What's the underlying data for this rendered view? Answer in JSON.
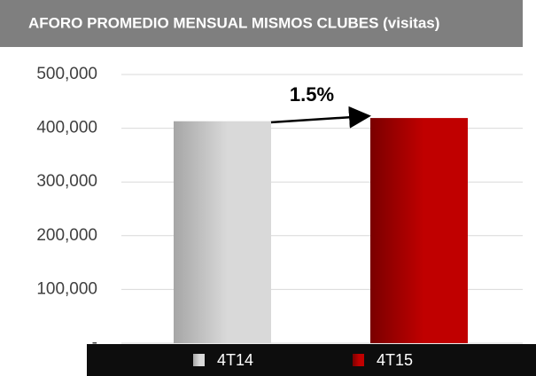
{
  "chart_data": {
    "type": "bar",
    "title": "AFORO PROMEDIO MENSUAL MISMOS CLUBES  (visitas)",
    "categories": [
      "4T14",
      "4T15"
    ],
    "values": [
      413000,
      419000
    ],
    "colors": [
      "#d9d9d9",
      "#c00000"
    ],
    "annotation": "1.5%",
    "ylim": [
      0,
      500000
    ],
    "yticks": [
      {
        "value": 0,
        "label": "-"
      },
      {
        "value": 100000,
        "label": "100,000"
      },
      {
        "value": 200000,
        "label": "200,000"
      },
      {
        "value": 300000,
        "label": "300,000"
      },
      {
        "value": 400000,
        "label": "400,000"
      },
      {
        "value": 500000,
        "label": "500,000"
      }
    ],
    "grid": true,
    "legend": "bottom"
  }
}
